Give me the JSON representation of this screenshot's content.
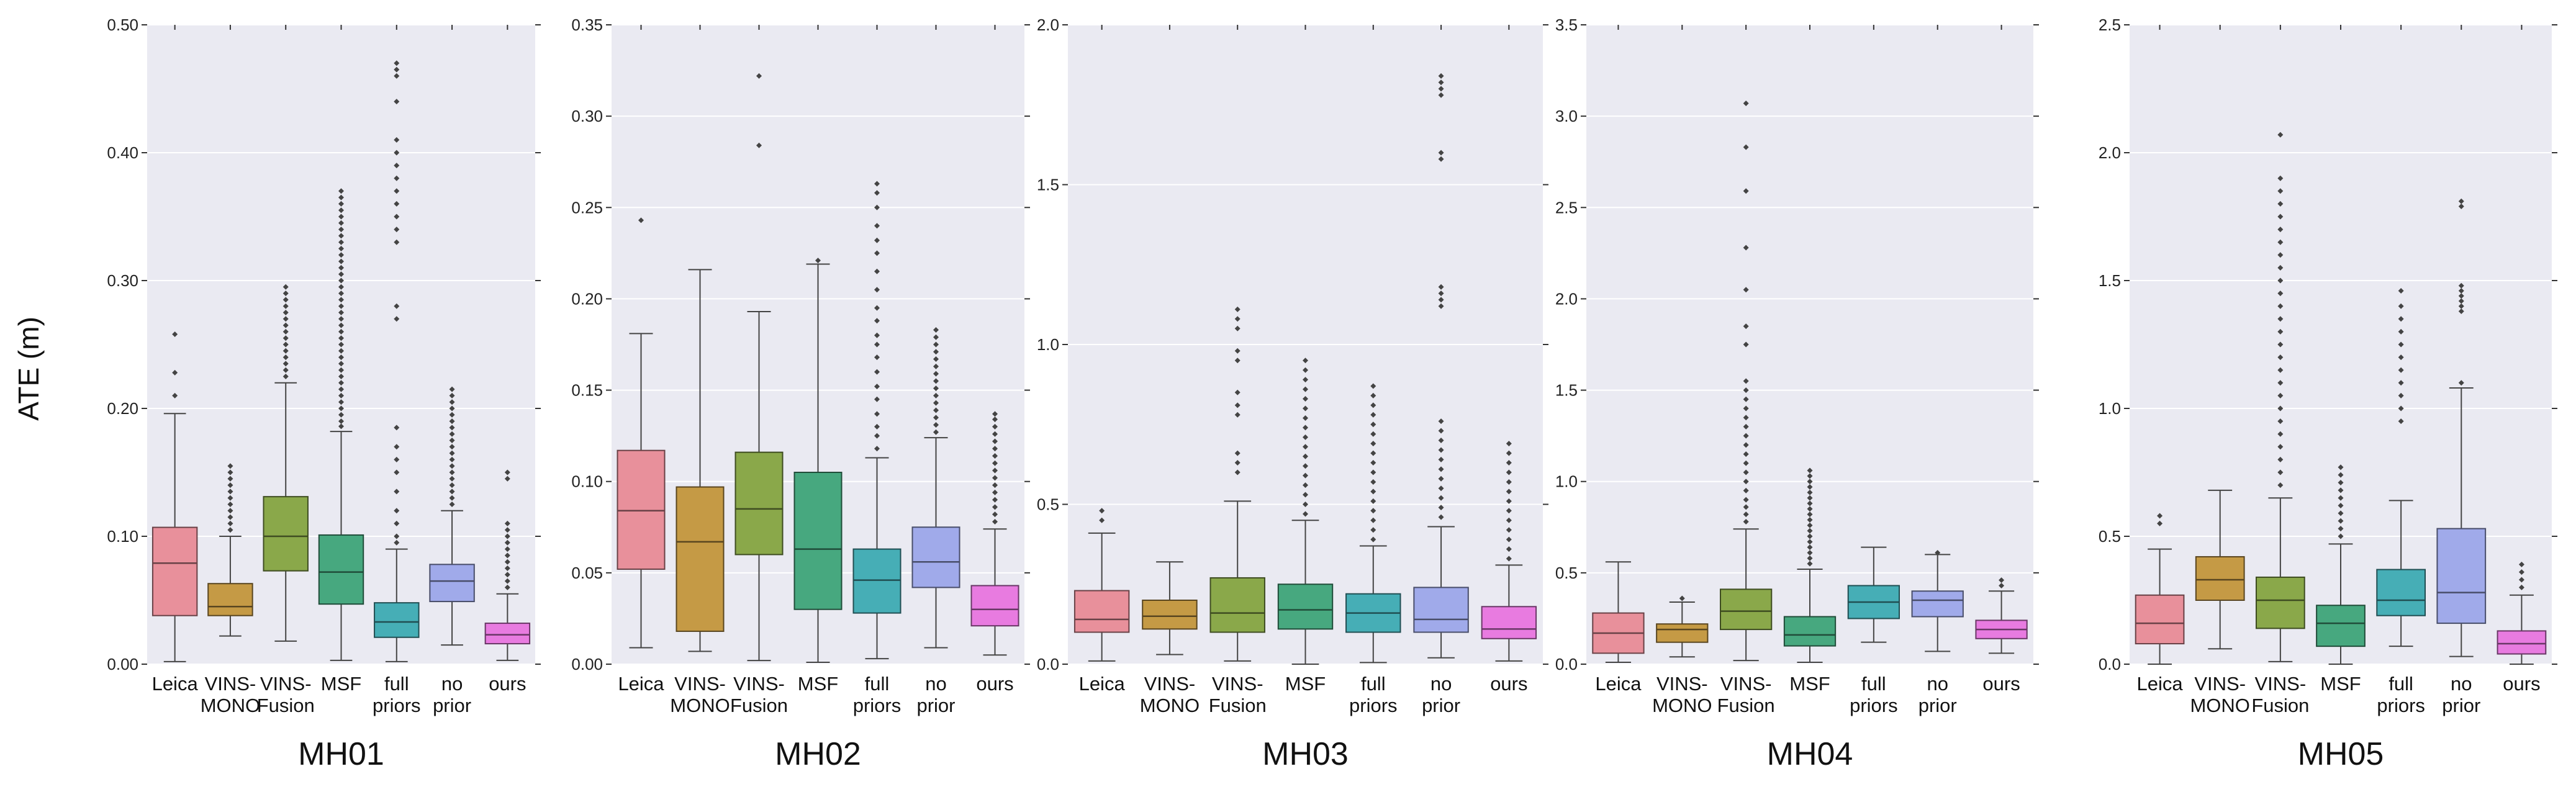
{
  "figure": {
    "ylabel": "ATE (m)"
  },
  "colors": {
    "Leica": "#e8909b",
    "VINS-MONO": "#c59a45",
    "VINS-Fusion": "#8aa84a",
    "MSF": "#47a87f",
    "full priors": "#46aeb6",
    "no prior": "#a0aaea",
    "ours": "#e87be0"
  },
  "chart_data": [
    {
      "type": "box",
      "title": "MH01",
      "ylabel": "ATE (m)",
      "ylim": [
        0,
        0.5
      ],
      "yticks": [
        0.0,
        0.1,
        0.2,
        0.3,
        0.4,
        0.5
      ],
      "ytick_labels": [
        "0.00",
        "0.10",
        "0.20",
        "0.30",
        "0.40",
        "0.50"
      ],
      "categories": [
        [
          "Leica"
        ],
        [
          "VINS-",
          "MONO"
        ],
        [
          "VINS-",
          "Fusion"
        ],
        [
          "MSF"
        ],
        [
          "full",
          "priors"
        ],
        [
          "no",
          "prior"
        ],
        [
          "ours"
        ]
      ],
      "series": [
        {
          "name": "Leica",
          "whislo": 0.002,
          "q1": 0.038,
          "med": 0.079,
          "q3": 0.107,
          "whishi": 0.196,
          "fliers": [
            0.21,
            0.228,
            0.258
          ]
        },
        {
          "name": "VINS-MONO",
          "whislo": 0.022,
          "q1": 0.038,
          "med": 0.045,
          "q3": 0.063,
          "whishi": 0.1,
          "fliers": [
            0.105,
            0.11,
            0.115,
            0.12,
            0.125,
            0.13,
            0.135,
            0.14,
            0.145,
            0.15,
            0.155
          ]
        },
        {
          "name": "VINS-Fusion",
          "whislo": 0.018,
          "q1": 0.073,
          "med": 0.1,
          "q3": 0.131,
          "whishi": 0.22,
          "fliers": [
            0.225,
            0.23,
            0.235,
            0.24,
            0.245,
            0.25,
            0.255,
            0.26,
            0.265,
            0.27,
            0.275,
            0.28,
            0.285,
            0.29,
            0.295
          ]
        },
        {
          "name": "MSF",
          "whislo": 0.003,
          "q1": 0.047,
          "med": 0.072,
          "q3": 0.101,
          "whishi": 0.182,
          "fliers": [
            0.186,
            0.19,
            0.195,
            0.2,
            0.205,
            0.21,
            0.215,
            0.22,
            0.225,
            0.23,
            0.235,
            0.24,
            0.245,
            0.25,
            0.255,
            0.26,
            0.265,
            0.27,
            0.275,
            0.28,
            0.285,
            0.29,
            0.295,
            0.3,
            0.305,
            0.31,
            0.315,
            0.32,
            0.325,
            0.33,
            0.335,
            0.34,
            0.345,
            0.35,
            0.355,
            0.36,
            0.365,
            0.37
          ]
        },
        {
          "name": "full priors",
          "whislo": 0.002,
          "q1": 0.021,
          "med": 0.033,
          "q3": 0.048,
          "whishi": 0.09,
          "fliers": [
            0.095,
            0.1,
            0.11,
            0.12,
            0.135,
            0.15,
            0.16,
            0.17,
            0.185,
            0.27,
            0.28,
            0.33,
            0.34,
            0.35,
            0.36,
            0.37,
            0.38,
            0.39,
            0.4,
            0.41,
            0.44,
            0.46,
            0.465,
            0.47
          ]
        },
        {
          "name": "no prior",
          "whislo": 0.015,
          "q1": 0.049,
          "med": 0.065,
          "q3": 0.078,
          "whishi": 0.12,
          "fliers": [
            0.125,
            0.13,
            0.135,
            0.14,
            0.145,
            0.15,
            0.155,
            0.16,
            0.165,
            0.17,
            0.175,
            0.18,
            0.185,
            0.19,
            0.195,
            0.2,
            0.205,
            0.21,
            0.215
          ]
        },
        {
          "name": "ours",
          "whislo": 0.003,
          "q1": 0.016,
          "med": 0.023,
          "q3": 0.032,
          "whishi": 0.055,
          "fliers": [
            0.06,
            0.065,
            0.07,
            0.075,
            0.08,
            0.085,
            0.09,
            0.095,
            0.1,
            0.105,
            0.11,
            0.145,
            0.15
          ]
        }
      ]
    },
    {
      "type": "box",
      "title": "MH02",
      "ylabel": "",
      "ylim": [
        0,
        0.35
      ],
      "yticks": [
        0.0,
        0.05,
        0.1,
        0.15,
        0.2,
        0.25,
        0.3,
        0.35
      ],
      "ytick_labels": [
        "0.00",
        "0.05",
        "0.10",
        "0.15",
        "0.20",
        "0.25",
        "0.30",
        "0.35"
      ],
      "categories": [
        [
          "Leica"
        ],
        [
          "VINS-",
          "MONO"
        ],
        [
          "VINS-",
          "Fusion"
        ],
        [
          "MSF"
        ],
        [
          "full",
          "priors"
        ],
        [
          "no",
          "prior"
        ],
        [
          "ours"
        ]
      ],
      "series": [
        {
          "name": "Leica",
          "whislo": 0.009,
          "q1": 0.052,
          "med": 0.084,
          "q3": 0.117,
          "whishi": 0.181,
          "fliers": [
            0.243
          ]
        },
        {
          "name": "VINS-MONO",
          "whislo": 0.007,
          "q1": 0.018,
          "med": 0.067,
          "q3": 0.097,
          "whishi": 0.216,
          "fliers": []
        },
        {
          "name": "VINS-Fusion",
          "whislo": 0.002,
          "q1": 0.06,
          "med": 0.085,
          "q3": 0.116,
          "whishi": 0.193,
          "fliers": [
            0.284,
            0.322
          ]
        },
        {
          "name": "MSF",
          "whislo": 0.001,
          "q1": 0.03,
          "med": 0.063,
          "q3": 0.105,
          "whishi": 0.219,
          "fliers": [
            0.221
          ]
        },
        {
          "name": "full priors",
          "whislo": 0.003,
          "q1": 0.028,
          "med": 0.046,
          "q3": 0.063,
          "whishi": 0.113,
          "fliers": [
            0.118,
            0.125,
            0.13,
            0.137,
            0.145,
            0.152,
            0.16,
            0.168,
            0.175,
            0.18,
            0.188,
            0.195,
            0.205,
            0.215,
            0.225,
            0.232,
            0.24,
            0.25,
            0.258,
            0.263
          ]
        },
        {
          "name": "no prior",
          "whislo": 0.009,
          "q1": 0.042,
          "med": 0.056,
          "q3": 0.075,
          "whishi": 0.124,
          "fliers": [
            0.127,
            0.131,
            0.135,
            0.139,
            0.143,
            0.147,
            0.151,
            0.155,
            0.159,
            0.163,
            0.167,
            0.171,
            0.175,
            0.179,
            0.183
          ]
        },
        {
          "name": "ours",
          "whislo": 0.005,
          "q1": 0.021,
          "med": 0.03,
          "q3": 0.043,
          "whishi": 0.074,
          "fliers": [
            0.078,
            0.082,
            0.086,
            0.09,
            0.094,
            0.098,
            0.102,
            0.106,
            0.11,
            0.114,
            0.118,
            0.122,
            0.126,
            0.13,
            0.134,
            0.137
          ]
        }
      ]
    },
    {
      "type": "box",
      "title": "MH03",
      "ylabel": "",
      "ylim": [
        0,
        2.0
      ],
      "yticks": [
        0.0,
        0.5,
        1.0,
        1.5,
        2.0
      ],
      "ytick_labels": [
        "0.0",
        "0.5",
        "1.0",
        "1.5",
        "2.0"
      ],
      "categories": [
        [
          "Leica"
        ],
        [
          "VINS-",
          "MONO"
        ],
        [
          "VINS-",
          "Fusion"
        ],
        [
          "MSF"
        ],
        [
          "full",
          "priors"
        ],
        [
          "no",
          "prior"
        ],
        [
          "ours"
        ]
      ],
      "series": [
        {
          "name": "Leica",
          "whislo": 0.01,
          "q1": 0.1,
          "med": 0.14,
          "q3": 0.23,
          "whishi": 0.41,
          "fliers": [
            0.45,
            0.48
          ]
        },
        {
          "name": "VINS-MONO",
          "whislo": 0.03,
          "q1": 0.11,
          "med": 0.15,
          "q3": 0.2,
          "whishi": 0.32,
          "fliers": []
        },
        {
          "name": "VINS-Fusion",
          "whislo": 0.01,
          "q1": 0.1,
          "med": 0.16,
          "q3": 0.27,
          "whishi": 0.51,
          "fliers": [
            0.6,
            0.63,
            0.66,
            0.78,
            0.81,
            0.85,
            0.95,
            0.98,
            1.05,
            1.08,
            1.11
          ]
        },
        {
          "name": "MSF",
          "whislo": 0.0,
          "q1": 0.11,
          "med": 0.17,
          "q3": 0.25,
          "whishi": 0.45,
          "fliers": [
            0.47,
            0.5,
            0.53,
            0.56,
            0.59,
            0.62,
            0.65,
            0.68,
            0.71,
            0.74,
            0.77,
            0.8,
            0.83,
            0.86,
            0.89,
            0.92,
            0.95
          ]
        },
        {
          "name": "full priors",
          "whislo": 0.005,
          "q1": 0.1,
          "med": 0.16,
          "q3": 0.22,
          "whishi": 0.37,
          "fliers": [
            0.39,
            0.42,
            0.45,
            0.48,
            0.51,
            0.54,
            0.57,
            0.6,
            0.63,
            0.66,
            0.69,
            0.72,
            0.75,
            0.78,
            0.81,
            0.84,
            0.87
          ]
        },
        {
          "name": "no prior",
          "whislo": 0.02,
          "q1": 0.1,
          "med": 0.14,
          "q3": 0.24,
          "whishi": 0.43,
          "fliers": [
            0.46,
            0.49,
            0.52,
            0.55,
            0.58,
            0.61,
            0.64,
            0.67,
            0.7,
            0.73,
            0.76,
            1.12,
            1.14,
            1.16,
            1.18,
            1.58,
            1.6,
            1.78,
            1.8,
            1.82,
            1.84
          ]
        },
        {
          "name": "ours",
          "whislo": 0.01,
          "q1": 0.08,
          "med": 0.11,
          "q3": 0.18,
          "whishi": 0.31,
          "fliers": [
            0.33,
            0.36,
            0.39,
            0.42,
            0.45,
            0.48,
            0.51,
            0.54,
            0.57,
            0.6,
            0.63,
            0.66,
            0.69
          ]
        }
      ]
    },
    {
      "type": "box",
      "title": "MH04",
      "ylabel": "",
      "ylim": [
        0,
        3.5
      ],
      "yticks": [
        0.0,
        0.5,
        1.0,
        1.5,
        2.0,
        2.5,
        3.0,
        3.5
      ],
      "ytick_labels": [
        "0.0",
        "0.5",
        "1.0",
        "1.5",
        "2.0",
        "2.5",
        "3.0",
        "3.5"
      ],
      "categories": [
        [
          "Leica"
        ],
        [
          "VINS-",
          "MONO"
        ],
        [
          "VINS-",
          "Fusion"
        ],
        [
          "MSF"
        ],
        [
          "full",
          "priors"
        ],
        [
          "no",
          "prior"
        ],
        [
          "ours"
        ]
      ],
      "series": [
        {
          "name": "Leica",
          "whislo": 0.01,
          "q1": 0.06,
          "med": 0.17,
          "q3": 0.28,
          "whishi": 0.56,
          "fliers": []
        },
        {
          "name": "VINS-MONO",
          "whislo": 0.04,
          "q1": 0.12,
          "med": 0.19,
          "q3": 0.22,
          "whishi": 0.34,
          "fliers": [
            0.36
          ]
        },
        {
          "name": "VINS-Fusion",
          "whislo": 0.02,
          "q1": 0.19,
          "med": 0.29,
          "q3": 0.41,
          "whishi": 0.74,
          "fliers": [
            0.78,
            0.82,
            0.86,
            0.9,
            0.95,
            1.0,
            1.05,
            1.1,
            1.15,
            1.2,
            1.25,
            1.3,
            1.35,
            1.4,
            1.45,
            1.5,
            1.55,
            1.75,
            1.85,
            2.05,
            2.28,
            2.59,
            2.83,
            3.07
          ]
        },
        {
          "name": "MSF",
          "whislo": 0.01,
          "q1": 0.1,
          "med": 0.16,
          "q3": 0.26,
          "whishi": 0.52,
          "fliers": [
            0.55,
            0.58,
            0.61,
            0.64,
            0.67,
            0.7,
            0.73,
            0.76,
            0.79,
            0.82,
            0.85,
            0.88,
            0.91,
            0.94,
            0.97,
            1.0,
            1.03,
            1.06
          ]
        },
        {
          "name": "full priors",
          "whislo": 0.12,
          "q1": 0.25,
          "med": 0.34,
          "q3": 0.43,
          "whishi": 0.64,
          "fliers": []
        },
        {
          "name": "no prior",
          "whislo": 0.07,
          "q1": 0.26,
          "med": 0.35,
          "q3": 0.4,
          "whishi": 0.6,
          "fliers": [
            0.61
          ]
        },
        {
          "name": "ours",
          "whislo": 0.06,
          "q1": 0.14,
          "med": 0.19,
          "q3": 0.24,
          "whishi": 0.4,
          "fliers": [
            0.43,
            0.46
          ]
        }
      ]
    },
    {
      "type": "box",
      "title": "MH05",
      "ylabel": "",
      "ylim": [
        0,
        2.5
      ],
      "yticks": [
        0.0,
        0.5,
        1.0,
        1.5,
        2.0,
        2.5
      ],
      "ytick_labels": [
        "0.0",
        "0.5",
        "1.0",
        "1.5",
        "2.0",
        "2.5"
      ],
      "categories": [
        [
          "Leica"
        ],
        [
          "VINS-",
          "MONO"
        ],
        [
          "VINS-",
          "Fusion"
        ],
        [
          "MSF"
        ],
        [
          "full",
          "priors"
        ],
        [
          "no",
          "prior"
        ],
        [
          "ours"
        ]
      ],
      "series": [
        {
          "name": "Leica",
          "whislo": 0.0,
          "q1": 0.08,
          "med": 0.16,
          "q3": 0.27,
          "whishi": 0.45,
          "fliers": [
            0.55,
            0.58
          ]
        },
        {
          "name": "VINS-MONO",
          "whislo": 0.06,
          "q1": 0.25,
          "med": 0.33,
          "q3": 0.42,
          "whishi": 0.68,
          "fliers": []
        },
        {
          "name": "VINS-Fusion",
          "whislo": 0.01,
          "q1": 0.14,
          "med": 0.25,
          "q3": 0.34,
          "whishi": 0.65,
          "fliers": [
            0.7,
            0.75,
            0.8,
            0.85,
            0.9,
            0.95,
            1.0,
            1.05,
            1.1,
            1.15,
            1.2,
            1.25,
            1.3,
            1.35,
            1.4,
            1.45,
            1.5,
            1.55,
            1.6,
            1.65,
            1.7,
            1.75,
            1.8,
            1.85,
            1.9,
            2.07
          ]
        },
        {
          "name": "MSF",
          "whislo": 0.0,
          "q1": 0.07,
          "med": 0.16,
          "q3": 0.23,
          "whishi": 0.47,
          "fliers": [
            0.5,
            0.53,
            0.56,
            0.59,
            0.62,
            0.65,
            0.68,
            0.71,
            0.74,
            0.77
          ]
        },
        {
          "name": "full priors",
          "whislo": 0.07,
          "q1": 0.19,
          "med": 0.25,
          "q3": 0.37,
          "whishi": 0.64,
          "fliers": [
            0.95,
            1.0,
            1.05,
            1.1,
            1.15,
            1.2,
            1.25,
            1.3,
            1.35,
            1.4,
            1.46
          ]
        },
        {
          "name": "no prior",
          "whislo": 0.03,
          "q1": 0.16,
          "med": 0.28,
          "q3": 0.53,
          "whishi": 1.08,
          "fliers": [
            1.1,
            1.38,
            1.4,
            1.42,
            1.44,
            1.46,
            1.48,
            1.79,
            1.81
          ]
        },
        {
          "name": "ours",
          "whislo": 0.0,
          "q1": 0.04,
          "med": 0.08,
          "q3": 0.13,
          "whishi": 0.27,
          "fliers": [
            0.3,
            0.33,
            0.36,
            0.39
          ]
        }
      ]
    }
  ]
}
